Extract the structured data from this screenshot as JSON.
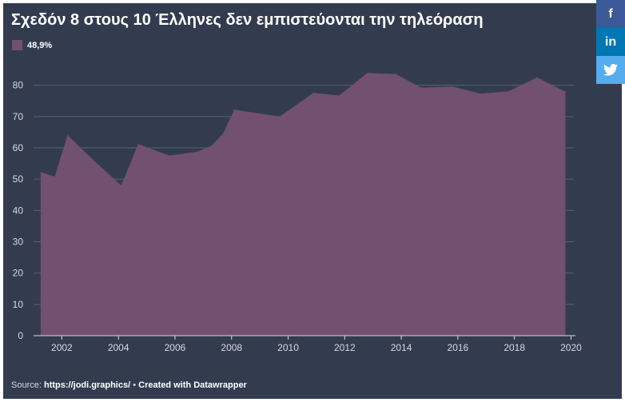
{
  "title": "Σχεδόν 8 στους 10 Έλληνες δεν εμπιστεύονται την τηλεόραση",
  "footer": {
    "source_label": "Source:",
    "source_link": "https://jodi.graphics/",
    "separator": "•",
    "credit": "Created with Datawrapper"
  },
  "share": {
    "facebook_label": "f",
    "linkedin_label": "in",
    "facebook_color": "#3b5998",
    "linkedin_color": "#0077b5",
    "twitter_color": "#55acee"
  },
  "colors": {
    "background": "#333c4e",
    "area": "#725070",
    "grid": "#56607a",
    "axis": "#d9d9d9",
    "tick_text": "#d6d9df"
  },
  "chart_data": {
    "type": "area",
    "legend_position": "top-left",
    "grid": true,
    "series": [
      {
        "name": "48,9%",
        "color": "#725070",
        "points": [
          [
            2001.25,
            52.2
          ],
          [
            2001.75,
            50.8
          ],
          [
            2002.2,
            64.1
          ],
          [
            2003.1,
            56.2
          ],
          [
            2004.1,
            48.0
          ],
          [
            2004.7,
            61.2
          ],
          [
            2005.8,
            57.5
          ],
          [
            2006.8,
            58.8
          ],
          [
            2007.3,
            60.7
          ],
          [
            2007.7,
            64.6
          ],
          [
            2008.1,
            72.2
          ],
          [
            2009.7,
            70.0
          ],
          [
            2010.9,
            77.6
          ],
          [
            2011.8,
            76.7
          ],
          [
            2012.8,
            83.9
          ],
          [
            2013.8,
            83.6
          ],
          [
            2014.7,
            79.2
          ],
          [
            2015.8,
            79.6
          ],
          [
            2016.8,
            77.3
          ],
          [
            2017.8,
            78.1
          ],
          [
            2018.8,
            82.5
          ],
          [
            2019.8,
            77.9
          ]
        ]
      }
    ],
    "x_ticks": [
      "2002",
      "2004",
      "2006",
      "2008",
      "2010",
      "2012",
      "2014",
      "2016",
      "2018",
      "2020"
    ],
    "y_ticks": [
      "0",
      "10",
      "20",
      "30",
      "40",
      "50",
      "60",
      "70",
      "80"
    ],
    "xlim": [
      2001.0,
      2020.1
    ],
    "ylim": [
      0,
      84
    ],
    "xlabel": "",
    "ylabel": ""
  }
}
